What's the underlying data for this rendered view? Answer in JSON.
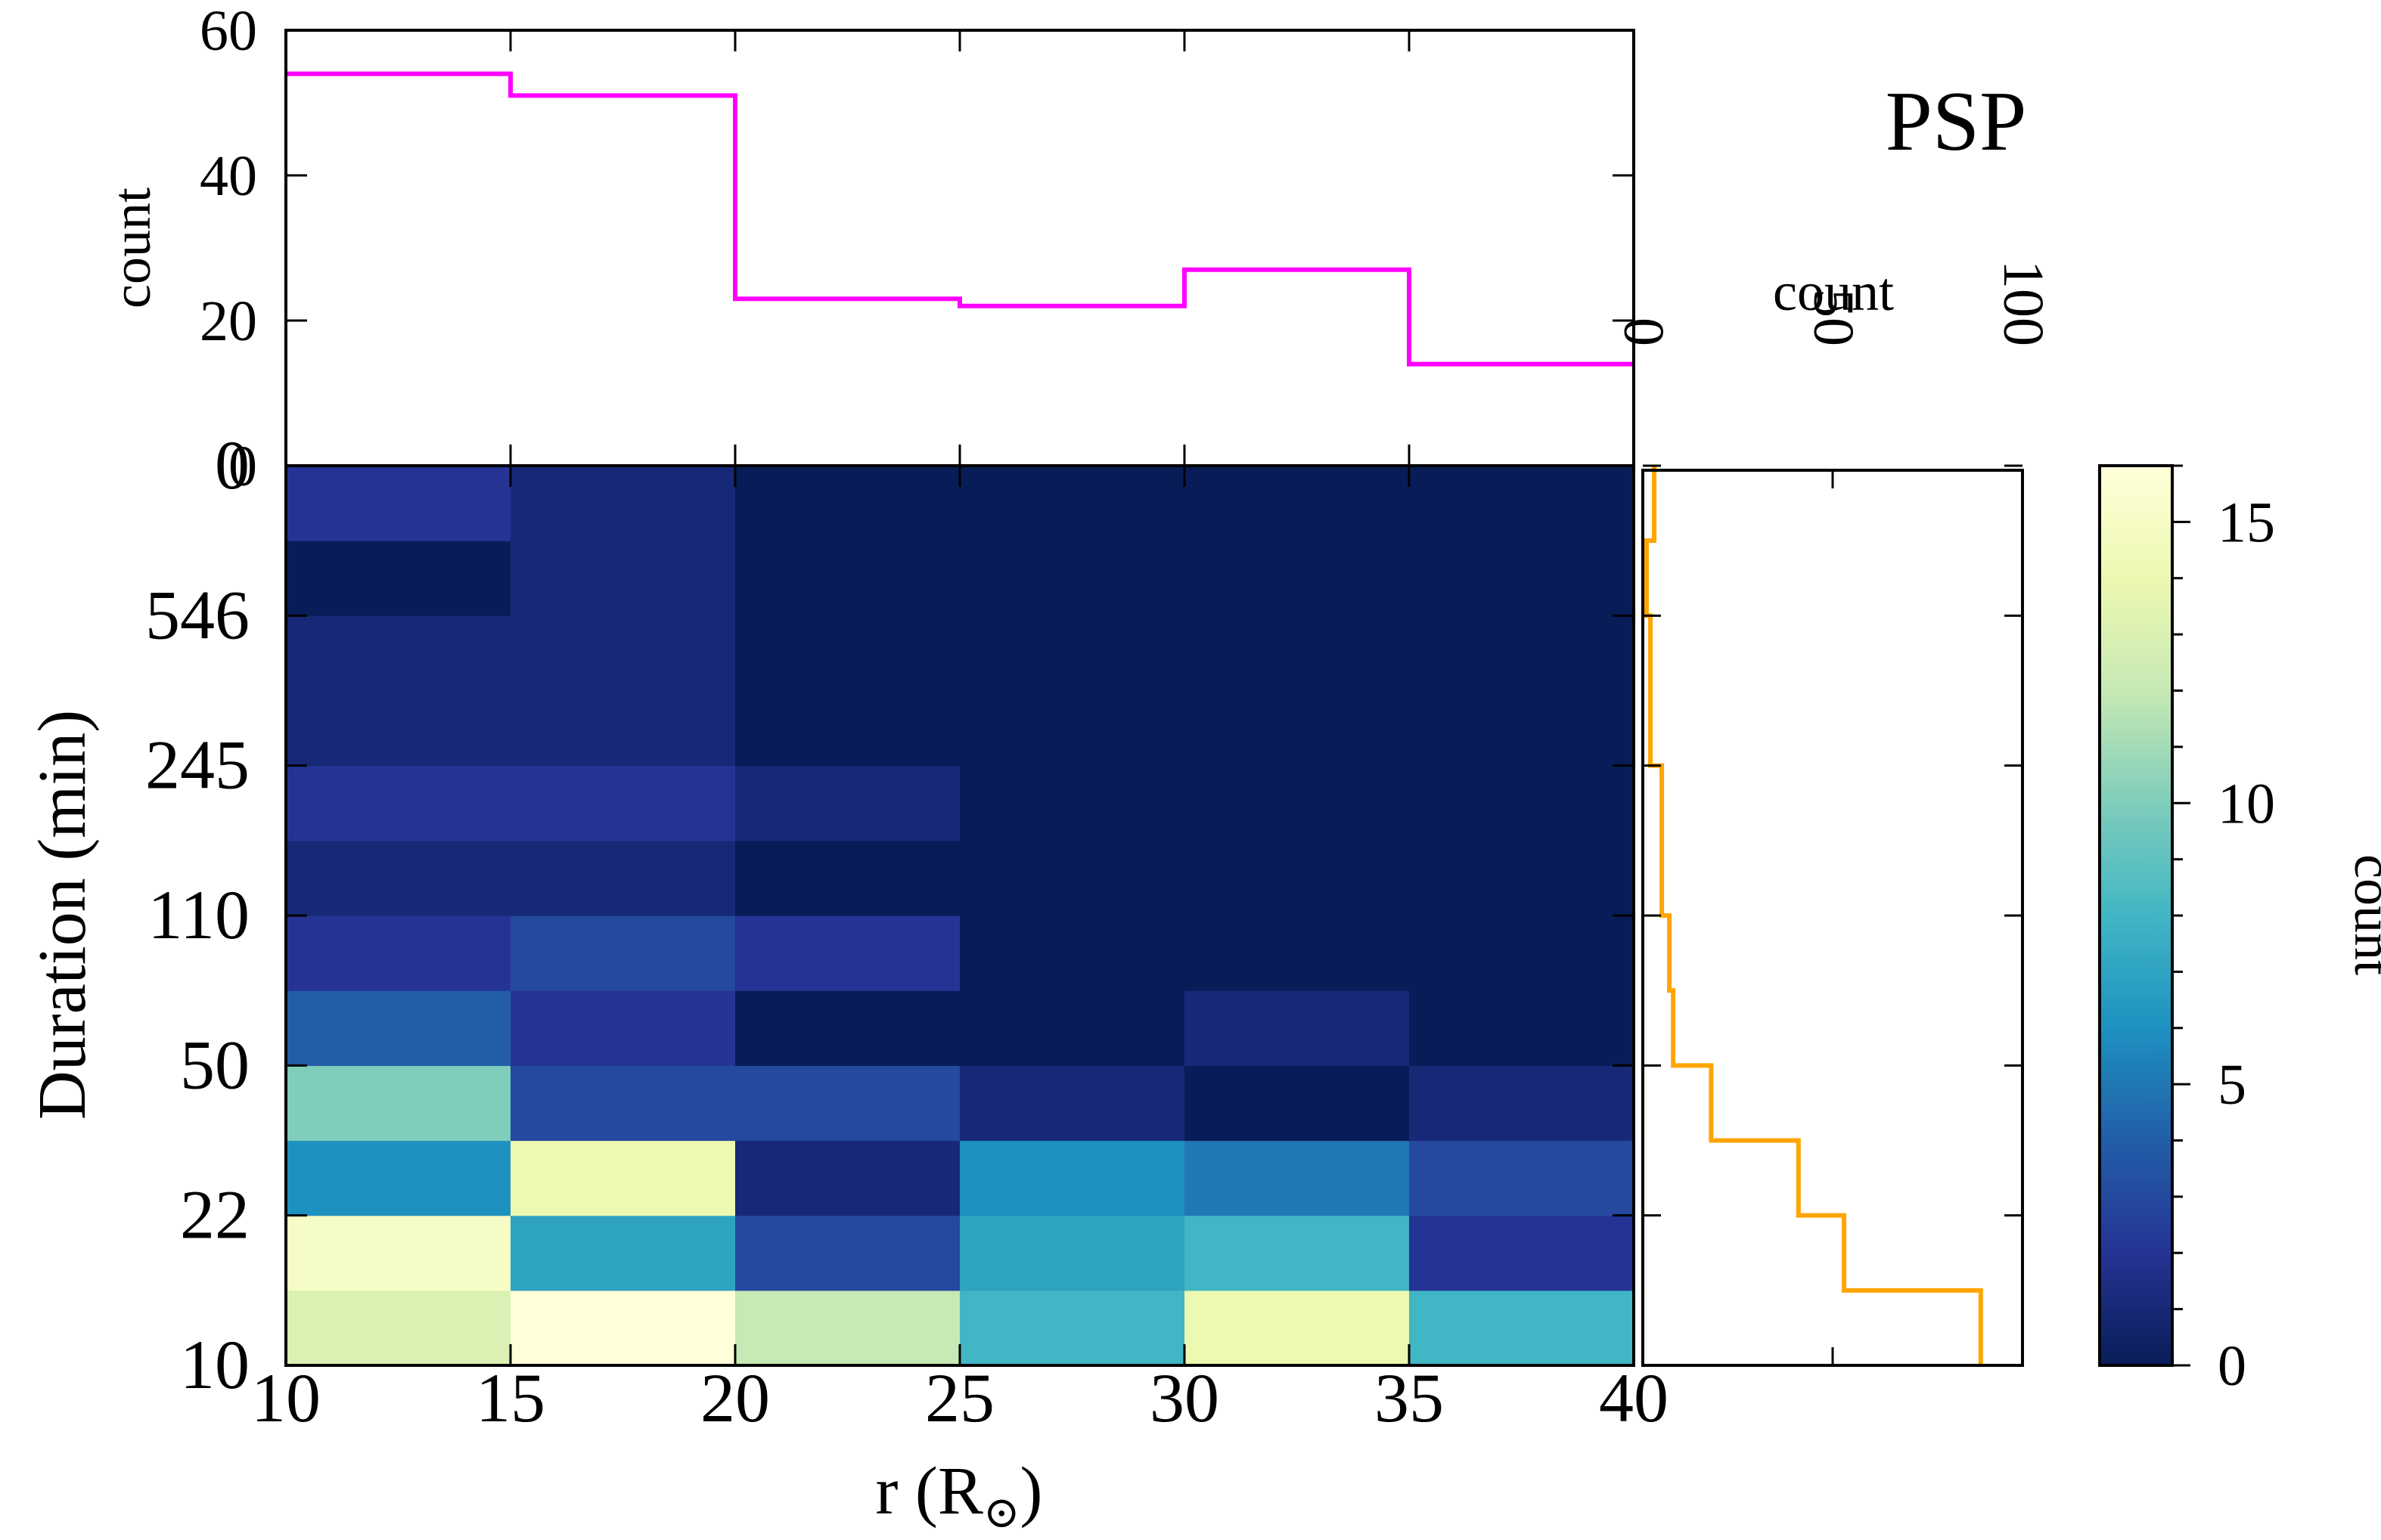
{
  "chart_data": [
    {
      "id": "top_histogram",
      "type": "step",
      "xlabel": "",
      "ylabel": "count",
      "xlim": [
        10,
        40
      ],
      "ylim": [
        0,
        60
      ],
      "yticks": [
        "0",
        "20",
        "40",
        "60"
      ],
      "bin_edges": [
        10,
        15,
        20,
        25,
        30,
        35,
        40
      ],
      "values": [
        54,
        51,
        23,
        22,
        27,
        14
      ],
      "color": "#ff00ff"
    },
    {
      "id": "heatmap",
      "type": "heatmap",
      "xlabel": "r (R",
      "xlabel_subscript": "⊙",
      "xlabel_close": ")",
      "ylabel": "Duration (min)",
      "xlim": [
        10,
        40
      ],
      "x_edges": [
        10,
        15,
        20,
        25,
        30,
        35,
        40
      ],
      "xticks": [
        "10",
        "15",
        "20",
        "25",
        "30",
        "35",
        "40"
      ],
      "n_rows": 12,
      "yticks": [
        "10",
        "22",
        "50",
        "110",
        "245",
        "546",
        "0"
      ],
      "values_bottom_to_top": [
        [
          13,
          16,
          12,
          8,
          14,
          8
        ],
        [
          15,
          7,
          3,
          7,
          8,
          2
        ],
        [
          6,
          14,
          1,
          6,
          5,
          3
        ],
        [
          10,
          3,
          3,
          1,
          0,
          1
        ],
        [
          4,
          2,
          0,
          0,
          1,
          0
        ],
        [
          2,
          3,
          2,
          0,
          0,
          0
        ],
        [
          1,
          1,
          0,
          0,
          0,
          0
        ],
        [
          2,
          2,
          1,
          0,
          0,
          0
        ],
        [
          1,
          1,
          0,
          0,
          0,
          0
        ],
        [
          1,
          1,
          0,
          0,
          0,
          0
        ],
        [
          0,
          1,
          0,
          0,
          0,
          0
        ],
        [
          2,
          1,
          0,
          0,
          0,
          0
        ]
      ],
      "colorbar": {
        "label": "count",
        "range": [
          0,
          16
        ],
        "ticks": [
          "0",
          "5",
          "10",
          "15"
        ],
        "colormap": "YlGnBu",
        "stops": [
          "#081d58",
          "#253494",
          "#225ea8",
          "#1d91c0",
          "#41b6c4",
          "#7fcdbb",
          "#c7e9b4",
          "#edf8b1",
          "#ffffd9"
        ]
      }
    },
    {
      "id": "side_histogram",
      "type": "step",
      "orientation": "horizontal",
      "xlabel": "count",
      "xlim": [
        0,
        100
      ],
      "xticks": [
        "0",
        "50",
        "100"
      ],
      "values_bottom_to_top": [
        89,
        53,
        41,
        18,
        8,
        7,
        5,
        5,
        2,
        2,
        1,
        3
      ],
      "color": "#ffa500"
    }
  ],
  "title": "PSP"
}
